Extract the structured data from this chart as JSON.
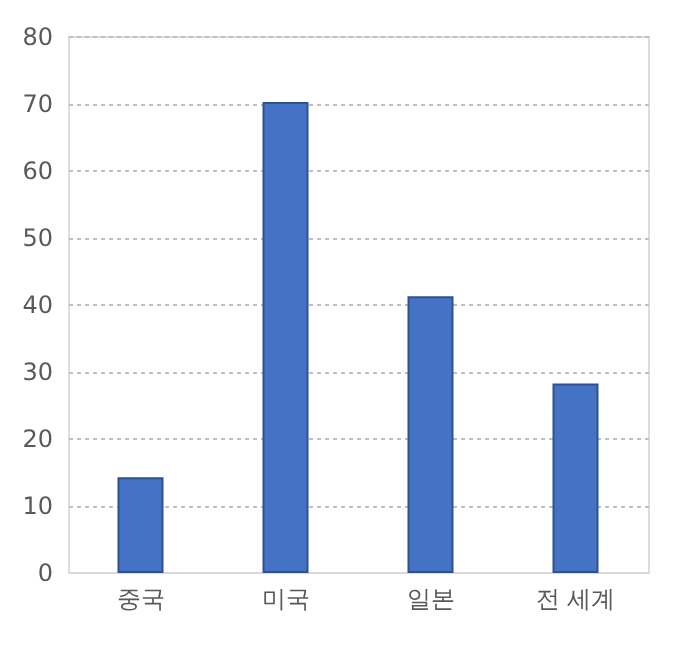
{
  "chart_data": {
    "type": "bar",
    "categories": [
      "중국",
      "미국",
      "일본",
      "전 세계"
    ],
    "values": [
      14,
      70,
      41,
      28
    ],
    "color": "#4472c4",
    "ylim": [
      0,
      80
    ],
    "yticks": [
      0,
      10,
      20,
      30,
      40,
      50,
      60,
      70,
      80
    ],
    "grid": "y"
  }
}
